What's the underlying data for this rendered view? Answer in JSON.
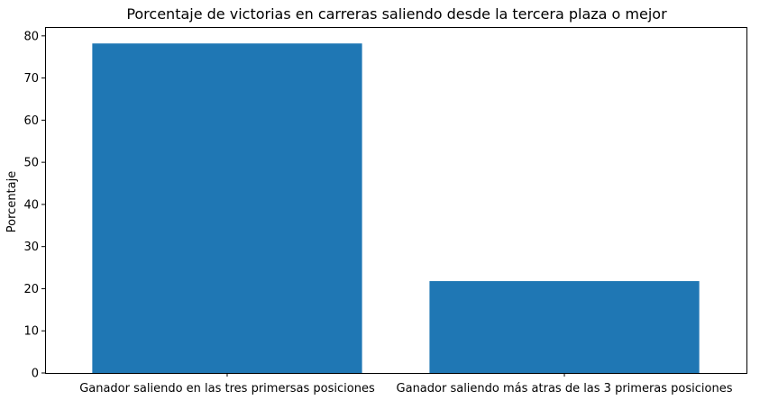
{
  "chart_data": {
    "type": "bar",
    "title": "Porcentaje de victorias en carreras saliendo desde la tercera plaza o mejor",
    "xlabel": "",
    "ylabel": "Porcentaje",
    "categories": [
      "Ganador saliendo en las tres primersas posiciones",
      "Ganador saliendo más atras de las 3 primeras posiciones"
    ],
    "values": [
      78.2,
      21.8
    ],
    "ylim": [
      0,
      82.1
    ],
    "yticks": [
      0,
      10,
      20,
      30,
      40,
      50,
      60,
      70,
      80
    ],
    "grid": false,
    "bar_color": "#1f77b4"
  }
}
